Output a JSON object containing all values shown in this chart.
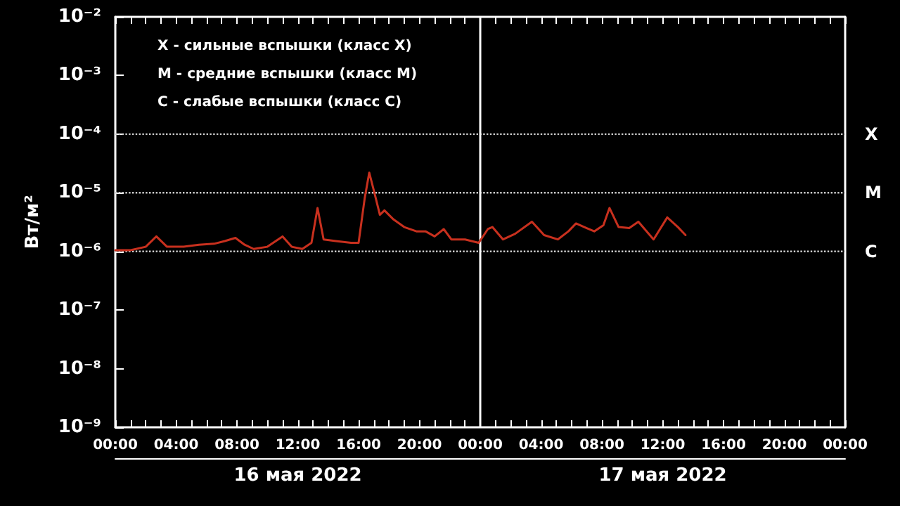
{
  "chart_data": {
    "type": "line",
    "ylabel": "Вт/м²",
    "log": "y",
    "x": [
      "2022-05-16T00:00",
      "2022-05-16T01:00",
      "2022-05-16T02:00",
      "2022-05-16T02:42",
      "2022-05-16T03:24",
      "2022-05-16T04:30",
      "2022-05-16T05:30",
      "2022-05-16T06:30",
      "2022-05-16T07:12",
      "2022-05-16T07:54",
      "2022-05-16T08:30",
      "2022-05-16T09:06",
      "2022-05-16T10:00",
      "2022-05-16T11:00",
      "2022-05-16T11:36",
      "2022-05-16T12:18",
      "2022-05-16T12:54",
      "2022-05-16T13:18",
      "2022-05-16T13:42",
      "2022-05-16T14:30",
      "2022-05-16T15:30",
      "2022-05-16T16:00",
      "2022-05-16T16:24",
      "2022-05-16T16:42",
      "2022-05-16T17:00",
      "2022-05-16T17:24",
      "2022-05-16T17:42",
      "2022-05-16T18:18",
      "2022-05-16T19:00",
      "2022-05-16T19:48",
      "2022-05-16T20:24",
      "2022-05-16T21:00",
      "2022-05-16T21:36",
      "2022-05-16T22:06",
      "2022-05-16T23:00",
      "2022-05-16T23:54",
      "2022-05-17T00:30",
      "2022-05-17T00:48",
      "2022-05-17T01:30",
      "2022-05-17T02:18",
      "2022-05-17T03:24",
      "2022-05-17T04:12",
      "2022-05-17T05:06",
      "2022-05-17T05:48",
      "2022-05-17T06:18",
      "2022-05-17T07:00",
      "2022-05-17T07:30",
      "2022-05-17T08:06",
      "2022-05-17T08:30",
      "2022-05-17T09:06",
      "2022-05-17T09:48",
      "2022-05-17T10:24",
      "2022-05-17T11:24",
      "2022-05-17T12:18",
      "2022-05-17T13:00",
      "2022-05-17T13:30"
    ],
    "series": [
      {
        "color": "#c8301e",
        "values": [
          1.05e-06,
          1.05e-06,
          1.2e-06,
          1.8e-06,
          1.2e-06,
          1.2e-06,
          1.3e-06,
          1.35e-06,
          1.5e-06,
          1.7e-06,
          1.3e-06,
          1.1e-06,
          1.2e-06,
          1.8e-06,
          1.2e-06,
          1.1e-06,
          1.4e-06,
          5.5e-06,
          1.6e-06,
          1.5e-06,
          1.4e-06,
          1.4e-06,
          8e-06,
          2.2e-05,
          1.1e-05,
          4.2e-06,
          5e-06,
          3.5e-06,
          2.6e-06,
          2.2e-06,
          2.2e-06,
          1.8e-06,
          2.4e-06,
          1.6e-06,
          1.6e-06,
          1.4e-06,
          2.4e-06,
          2.6e-06,
          1.6e-06,
          2e-06,
          3.2e-06,
          1.9e-06,
          1.6e-06,
          2.2e-06,
          3e-06,
          2.5e-06,
          2.2e-06,
          2.8e-06,
          5.5e-06,
          2.6e-06,
          2.5e-06,
          3.2e-06,
          1.6e-06,
          3.8e-06,
          2.6e-06,
          1.9e-06
        ]
      }
    ],
    "xlim": [
      "2022-05-16T00:00",
      "2022-05-18T00:00"
    ],
    "xticks": [
      {
        "value": "2022-05-16T00:00",
        "label": "00:00"
      },
      {
        "value": "2022-05-16T01:00",
        "label": null
      },
      {
        "value": "2022-05-16T02:00",
        "label": null
      },
      {
        "value": "2022-05-16T03:00",
        "label": null
      },
      {
        "value": "2022-05-16T04:00",
        "label": "04:00"
      },
      {
        "value": "2022-05-16T05:00",
        "label": null
      },
      {
        "value": "2022-05-16T06:00",
        "label": null
      },
      {
        "value": "2022-05-16T07:00",
        "label": null
      },
      {
        "value": "2022-05-16T08:00",
        "label": "08:00"
      },
      {
        "value": "2022-05-16T09:00",
        "label": null
      },
      {
        "value": "2022-05-16T10:00",
        "label": null
      },
      {
        "value": "2022-05-16T11:00",
        "label": null
      },
      {
        "value": "2022-05-16T12:00",
        "label": "12:00"
      },
      {
        "value": "2022-05-16T13:00",
        "label": null
      },
      {
        "value": "2022-05-16T14:00",
        "label": null
      },
      {
        "value": "2022-05-16T15:00",
        "label": null
      },
      {
        "value": "2022-05-16T16:00",
        "label": "16:00"
      },
      {
        "value": "2022-05-16T17:00",
        "label": null
      },
      {
        "value": "2022-05-16T18:00",
        "label": null
      },
      {
        "value": "2022-05-16T19:00",
        "label": null
      },
      {
        "value": "2022-05-16T20:00",
        "label": "20:00"
      },
      {
        "value": "2022-05-16T21:00",
        "label": null
      },
      {
        "value": "2022-05-16T22:00",
        "label": null
      },
      {
        "value": "2022-05-16T23:00",
        "label": null
      },
      {
        "value": "2022-05-17T00:00",
        "label": "00:00"
      },
      {
        "value": "2022-05-17T01:00",
        "label": null
      },
      {
        "value": "2022-05-17T02:00",
        "label": null
      },
      {
        "value": "2022-05-17T03:00",
        "label": null
      },
      {
        "value": "2022-05-17T04:00",
        "label": "04:00"
      },
      {
        "value": "2022-05-17T05:00",
        "label": null
      },
      {
        "value": "2022-05-17T06:00",
        "label": null
      },
      {
        "value": "2022-05-17T07:00",
        "label": null
      },
      {
        "value": "2022-05-17T08:00",
        "label": "08:00"
      },
      {
        "value": "2022-05-17T09:00",
        "label": null
      },
      {
        "value": "2022-05-17T10:00",
        "label": null
      },
      {
        "value": "2022-05-17T11:00",
        "label": null
      },
      {
        "value": "2022-05-17T12:00",
        "label": "12:00"
      },
      {
        "value": "2022-05-17T13:00",
        "label": null
      },
      {
        "value": "2022-05-17T14:00",
        "label": null
      },
      {
        "value": "2022-05-17T15:00",
        "label": null
      },
      {
        "value": "2022-05-17T16:00",
        "label": "16:00"
      },
      {
        "value": "2022-05-17T17:00",
        "label": null
      },
      {
        "value": "2022-05-17T18:00",
        "label": null
      },
      {
        "value": "2022-05-17T19:00",
        "label": null
      },
      {
        "value": "2022-05-17T20:00",
        "label": "20:00"
      },
      {
        "value": "2022-05-17T21:00",
        "label": null
      },
      {
        "value": "2022-05-17T22:00",
        "label": null
      },
      {
        "value": "2022-05-17T23:00",
        "label": null
      },
      {
        "value": "2022-05-18T00:00",
        "label": "00:00"
      }
    ],
    "x2lim": [
      "2022-05-16T00:00",
      "2022-05-18T00:00"
    ],
    "x2ticks": [
      {
        "value": "2022-05-16T12:00",
        "label": "16 мая 2022"
      },
      {
        "value": "2022-05-17T12:00",
        "label": "17 мая 2022"
      }
    ],
    "ylim": [
      1e-09,
      0.01
    ],
    "yticks": [
      {
        "value": 1e-09,
        "label": "10⁻⁹"
      },
      {
        "value": 1e-08,
        "label": "10⁻⁸"
      },
      {
        "value": 1e-07,
        "label": "10⁻⁷"
      },
      {
        "value": 1e-06,
        "label": "10⁻⁶"
      },
      {
        "value": 1e-05,
        "label": "10⁻⁵"
      },
      {
        "value": 0.0001,
        "label": "10⁻⁴"
      },
      {
        "value": 0.001,
        "label": "10⁻³"
      },
      {
        "value": 0.01,
        "label": "10⁻²"
      }
    ],
    "ref_lines": [
      {
        "axis": "y",
        "value": 0.0001,
        "label": "X",
        "color": "#cccccc",
        "line_style": "dotted"
      },
      {
        "axis": "y",
        "value": 1e-05,
        "label": "M",
        "color": "#cccccc",
        "line_style": "dotted"
      },
      {
        "axis": "y",
        "value": 1e-06,
        "label": "C",
        "color": "#cccccc",
        "line_style": "dotted"
      },
      {
        "axis": "x",
        "value": "2022-05-17T00:00",
        "color": "#ffffff",
        "line_style": "solid"
      }
    ],
    "annotations": [
      "X - сильные вспышки (класс X)",
      "M - средние вспышки (класс M)",
      "C - слабые вспышки (класс C)"
    ],
    "marker": "none",
    "line_style": "solid"
  }
}
